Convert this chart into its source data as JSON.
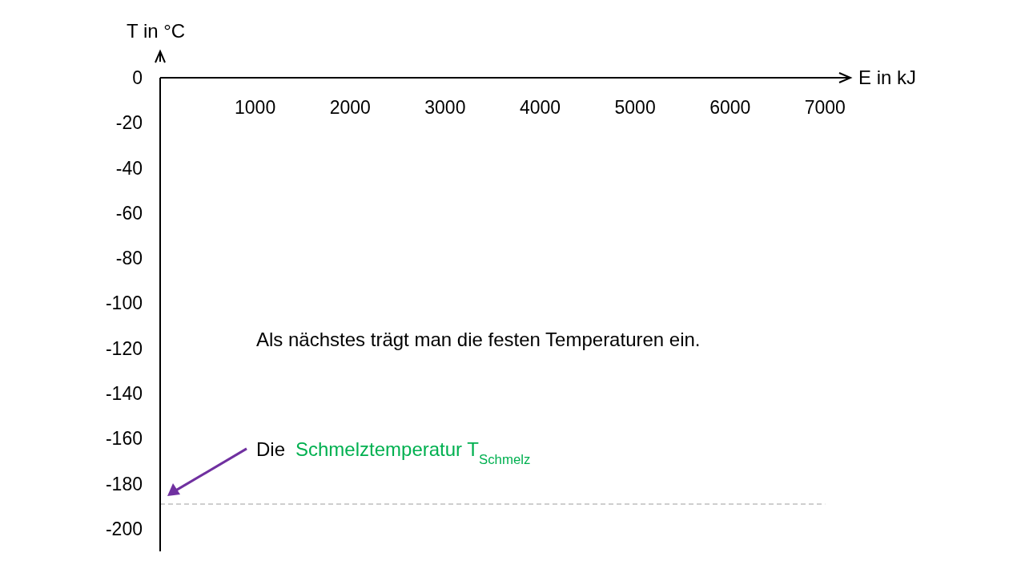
{
  "chart_data": {
    "type": "line",
    "xlabel": "E in kJ",
    "ylabel": "T in °C",
    "xlim": [
      0,
      7250
    ],
    "xticks": [
      1000,
      2000,
      3000,
      4000,
      5000,
      6000,
      7000
    ],
    "ylim": [
      -210,
      0
    ],
    "yticks": [
      0,
      -20,
      -40,
      -60,
      -80,
      -100,
      -120,
      -140,
      -160,
      -180,
      -200
    ],
    "ref_lines": [
      {
        "axis": "y",
        "value": -189,
        "color": "#bfbfbf",
        "line_style": "dashed"
      }
    ],
    "annotations": [
      "Als nächstes trägt man die festen Temperaturen ein.",
      "Die",
      "Schmelztemperatur T$_{Schmelz}$"
    ]
  }
}
